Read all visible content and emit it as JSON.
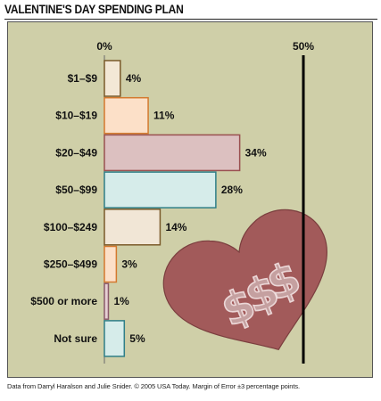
{
  "title": "VALENTINE'S DAY SPENDING PLAN",
  "source_note": "Data from Darryl Haralson and Julie Snider. © 2005 USA Today. Margin of Error ±3 percentage points.",
  "colors": {
    "panel": "#cfcfa8",
    "heart": "#a25a5a",
    "heart_stroke": "#7a3e3e",
    "axis_line": "#000000"
  },
  "decoration": {
    "heart_icon": "heart-with-dollar-signs"
  },
  "chart_data": {
    "type": "bar",
    "orientation": "horizontal",
    "title": "VALENTINE'S DAY SPENDING PLAN",
    "xlim": [
      0,
      50
    ],
    "ticks": [
      "0%",
      "50%"
    ],
    "tick_values": [
      0,
      50
    ],
    "grid": false,
    "categories": [
      "$1–$9",
      "$10–$19",
      "$20–$49",
      "$50–$99",
      "$100–$249",
      "$250–$499",
      "$500 or more",
      "Not sure"
    ],
    "values": [
      4,
      11,
      34,
      28,
      14,
      3,
      1,
      5
    ],
    "value_labels": [
      "4%",
      "11%",
      "34%",
      "28%",
      "14%",
      "3%",
      "1%",
      "5%"
    ],
    "bar_colors": [
      "#f3e8d6",
      "#fce0c8",
      "#dcc0c0",
      "#d6ecea",
      "#f1e6d6",
      "#fce0c8",
      "#e6cfd4",
      "#d6ecea"
    ],
    "bar_strokes": [
      "#7a5a2a",
      "#d4792e",
      "#9a5050",
      "#2f7f88",
      "#7a5a2a",
      "#d4792e",
      "#8a5a6a",
      "#2f7f88"
    ]
  }
}
